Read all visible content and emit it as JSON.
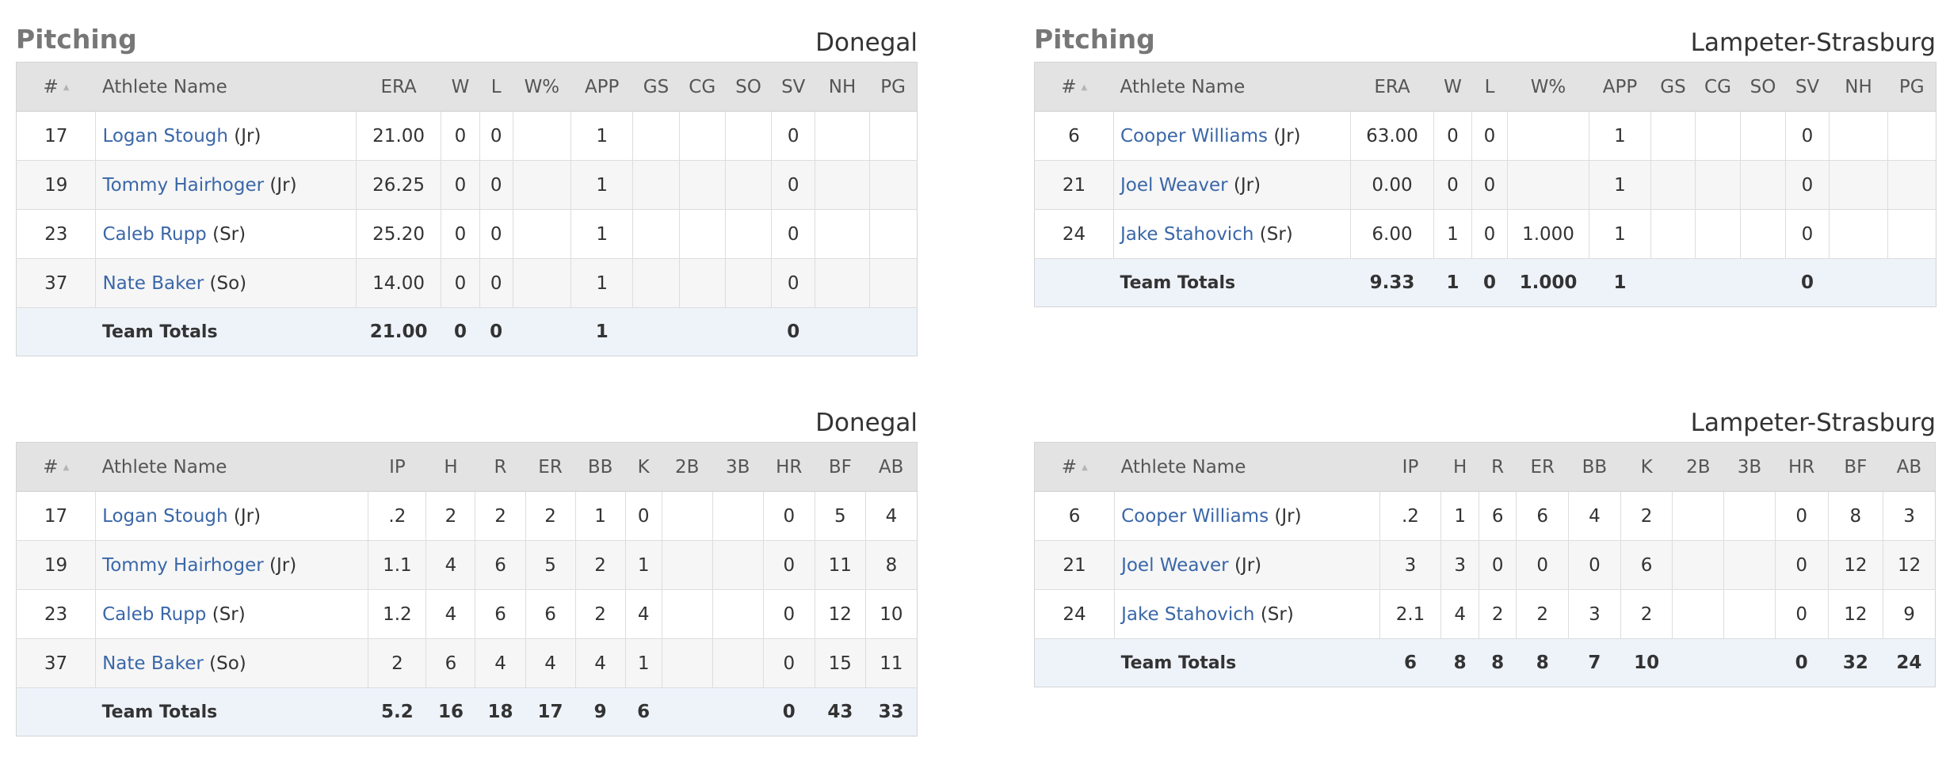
{
  "pitching_donegal": {
    "heading": "Pitching",
    "team": "Donegal",
    "columns": {
      "num": "#",
      "name": "Athlete Name",
      "c1": "ERA",
      "c2": "W",
      "c3": "L",
      "c4": "W%",
      "c5": "APP",
      "c6": "GS",
      "c7": "CG",
      "c8": "SO",
      "c9": "SV",
      "c10": "NH",
      "c11": "PG"
    },
    "rows": [
      {
        "num": "17",
        "name": "Logan Stough",
        "cls": "(Jr)",
        "c1": "21.00",
        "c2": "0",
        "c3": "0",
        "c4": "",
        "c5": "1",
        "c6": "",
        "c7": "",
        "c8": "",
        "c9": "0",
        "c10": "",
        "c11": ""
      },
      {
        "num": "19",
        "name": "Tommy Hairhoger",
        "cls": "(Jr)",
        "c1": "26.25",
        "c2": "0",
        "c3": "0",
        "c4": "",
        "c5": "1",
        "c6": "",
        "c7": "",
        "c8": "",
        "c9": "0",
        "c10": "",
        "c11": ""
      },
      {
        "num": "23",
        "name": "Caleb Rupp",
        "cls": "(Sr)",
        "c1": "25.20",
        "c2": "0",
        "c3": "0",
        "c4": "",
        "c5": "1",
        "c6": "",
        "c7": "",
        "c8": "",
        "c9": "0",
        "c10": "",
        "c11": ""
      },
      {
        "num": "37",
        "name": "Nate Baker",
        "cls": "(So)",
        "c1": "14.00",
        "c2": "0",
        "c3": "0",
        "c4": "",
        "c5": "1",
        "c6": "",
        "c7": "",
        "c8": "",
        "c9": "0",
        "c10": "",
        "c11": ""
      }
    ],
    "totals": {
      "label": "Team Totals",
      "c1": "21.00",
      "c2": "0",
      "c3": "0",
      "c4": "",
      "c5": "1",
      "c6": "",
      "c7": "",
      "c8": "",
      "c9": "0",
      "c10": "",
      "c11": ""
    }
  },
  "pitching_lampeter": {
    "heading": "Pitching",
    "team": "Lampeter-Strasburg",
    "columns": {
      "num": "#",
      "name": "Athlete Name",
      "c1": "ERA",
      "c2": "W",
      "c3": "L",
      "c4": "W%",
      "c5": "APP",
      "c6": "GS",
      "c7": "CG",
      "c8": "SO",
      "c9": "SV",
      "c10": "NH",
      "c11": "PG"
    },
    "rows": [
      {
        "num": "6",
        "name": "Cooper Williams",
        "cls": "(Jr)",
        "c1": "63.00",
        "c2": "0",
        "c3": "0",
        "c4": "",
        "c5": "1",
        "c6": "",
        "c7": "",
        "c8": "",
        "c9": "0",
        "c10": "",
        "c11": ""
      },
      {
        "num": "21",
        "name": "Joel Weaver",
        "cls": "(Jr)",
        "c1": "0.00",
        "c2": "0",
        "c3": "0",
        "c4": "",
        "c5": "1",
        "c6": "",
        "c7": "",
        "c8": "",
        "c9": "0",
        "c10": "",
        "c11": ""
      },
      {
        "num": "24",
        "name": "Jake Stahovich",
        "cls": "(Sr)",
        "c1": "6.00",
        "c2": "1",
        "c3": "0",
        "c4": "1.000",
        "c5": "1",
        "c6": "",
        "c7": "",
        "c8": "",
        "c9": "0",
        "c10": "",
        "c11": ""
      }
    ],
    "totals": {
      "label": "Team Totals",
      "c1": "9.33",
      "c2": "1",
      "c3": "0",
      "c4": "1.000",
      "c5": "1",
      "c6": "",
      "c7": "",
      "c8": "",
      "c9": "0",
      "c10": "",
      "c11": ""
    }
  },
  "batters_donegal": {
    "team": "Donegal",
    "columns": {
      "num": "#",
      "name": "Athlete Name",
      "c1": "IP",
      "c2": "H",
      "c3": "R",
      "c4": "ER",
      "c5": "BB",
      "c6": "K",
      "c7": "2B",
      "c8": "3B",
      "c9": "HR",
      "c10": "BF",
      "c11": "AB"
    },
    "rows": [
      {
        "num": "17",
        "name": "Logan Stough",
        "cls": "(Jr)",
        "c1": ".2",
        "c2": "2",
        "c3": "2",
        "c4": "2",
        "c5": "1",
        "c6": "0",
        "c7": "",
        "c8": "",
        "c9": "0",
        "c10": "5",
        "c11": "4"
      },
      {
        "num": "19",
        "name": "Tommy Hairhoger",
        "cls": "(Jr)",
        "c1": "1.1",
        "c2": "4",
        "c3": "6",
        "c4": "5",
        "c5": "2",
        "c6": "1",
        "c7": "",
        "c8": "",
        "c9": "0",
        "c10": "11",
        "c11": "8"
      },
      {
        "num": "23",
        "name": "Caleb Rupp",
        "cls": "(Sr)",
        "c1": "1.2",
        "c2": "4",
        "c3": "6",
        "c4": "6",
        "c5": "2",
        "c6": "4",
        "c7": "",
        "c8": "",
        "c9": "0",
        "c10": "12",
        "c11": "10"
      },
      {
        "num": "37",
        "name": "Nate Baker",
        "cls": "(So)",
        "c1": "2",
        "c2": "6",
        "c3": "4",
        "c4": "4",
        "c5": "4",
        "c6": "1",
        "c7": "",
        "c8": "",
        "c9": "0",
        "c10": "15",
        "c11": "11"
      }
    ],
    "totals": {
      "label": "Team Totals",
      "c1": "5.2",
      "c2": "16",
      "c3": "18",
      "c4": "17",
      "c5": "9",
      "c6": "6",
      "c7": "",
      "c8": "",
      "c9": "0",
      "c10": "43",
      "c11": "33"
    }
  },
  "batters_lampeter": {
    "team": "Lampeter-Strasburg",
    "columns": {
      "num": "#",
      "name": "Athlete Name",
      "c1": "IP",
      "c2": "H",
      "c3": "R",
      "c4": "ER",
      "c5": "BB",
      "c6": "K",
      "c7": "2B",
      "c8": "3B",
      "c9": "HR",
      "c10": "BF",
      "c11": "AB"
    },
    "rows": [
      {
        "num": "6",
        "name": "Cooper Williams",
        "cls": "(Jr)",
        "c1": ".2",
        "c2": "1",
        "c3": "6",
        "c4": "6",
        "c5": "4",
        "c6": "2",
        "c7": "",
        "c8": "",
        "c9": "0",
        "c10": "8",
        "c11": "3"
      },
      {
        "num": "21",
        "name": "Joel Weaver",
        "cls": "(Jr)",
        "c1": "3",
        "c2": "3",
        "c3": "0",
        "c4": "0",
        "c5": "0",
        "c6": "6",
        "c7": "",
        "c8": "",
        "c9": "0",
        "c10": "12",
        "c11": "12"
      },
      {
        "num": "24",
        "name": "Jake Stahovich",
        "cls": "(Sr)",
        "c1": "2.1",
        "c2": "4",
        "c3": "2",
        "c4": "2",
        "c5": "3",
        "c6": "2",
        "c7": "",
        "c8": "",
        "c9": "0",
        "c10": "12",
        "c11": "9"
      }
    ],
    "totals": {
      "label": "Team Totals",
      "c1": "6",
      "c2": "8",
      "c3": "8",
      "c4": "8",
      "c5": "7",
      "c6": "10",
      "c7": "",
      "c8": "",
      "c9": "0",
      "c10": "32",
      "c11": "24"
    }
  }
}
